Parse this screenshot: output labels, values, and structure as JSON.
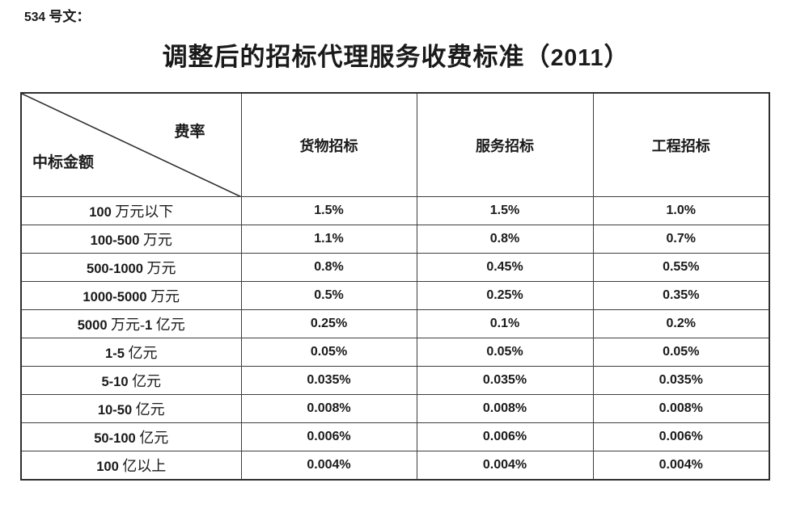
{
  "page": {
    "doc_label": "534 号文：",
    "title": "调整后的招标代理服务收费标准（2011）"
  },
  "colors": {
    "text": "#1a1a1a",
    "table_border": "#3d3d3d"
  },
  "table": {
    "corner": {
      "top_right_label": "费率",
      "bottom_left_label": "中标金额"
    },
    "columns": [
      "货物招标",
      "服务招标",
      "工程招标"
    ],
    "rows": [
      {
        "label": "100 万元以下",
        "values": [
          "1.5%",
          "1.5%",
          "1.0%"
        ]
      },
      {
        "label": "100-500 万元",
        "values": [
          "1.1%",
          "0.8%",
          "0.7%"
        ]
      },
      {
        "label": "500-1000 万元",
        "values": [
          "0.8%",
          "0.45%",
          "0.55%"
        ]
      },
      {
        "label": "1000-5000 万元",
        "values": [
          "0.5%",
          "0.25%",
          "0.35%"
        ]
      },
      {
        "label": "5000 万元-1 亿元",
        "values": [
          "0.25%",
          "0.1%",
          "0.2%"
        ]
      },
      {
        "label": "1-5 亿元",
        "values": [
          "0.05%",
          "0.05%",
          "0.05%"
        ]
      },
      {
        "label": "5-10 亿元",
        "values": [
          "0.035%",
          "0.035%",
          "0.035%"
        ]
      },
      {
        "label": "10-50 亿元",
        "values": [
          "0.008%",
          "0.008%",
          "0.008%"
        ]
      },
      {
        "label": "50-100 亿元",
        "values": [
          "0.006%",
          "0.006%",
          "0.006%"
        ]
      },
      {
        "label": "100 亿以上",
        "values": [
          "0.004%",
          "0.004%",
          "0.004%"
        ]
      }
    ]
  }
}
